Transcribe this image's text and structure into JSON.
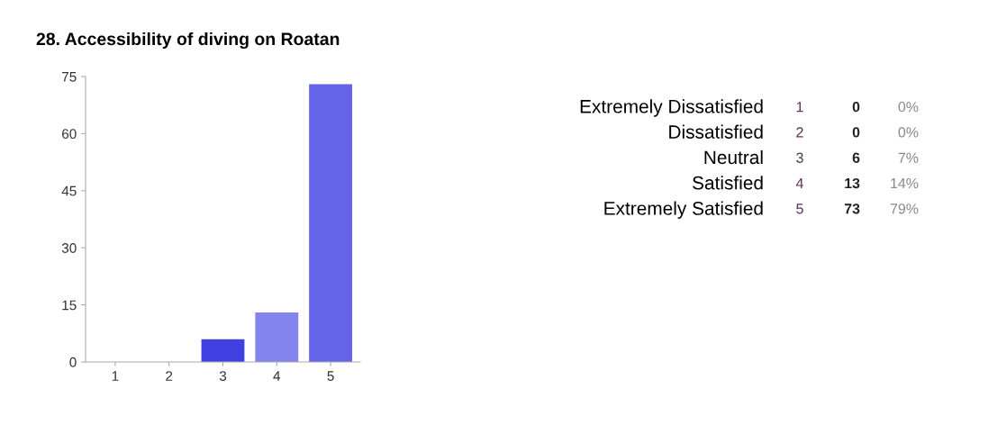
{
  "chart_data": {
    "type": "bar",
    "title": "28. Accessibility of diving on Roatan",
    "categories": [
      "1",
      "2",
      "3",
      "4",
      "5"
    ],
    "values": [
      0,
      0,
      6,
      13,
      73
    ],
    "colors": [
      "#4040e0",
      "#4040e0",
      "#4040e0",
      "#8484ee",
      "#6464e8"
    ],
    "ylim": [
      0,
      75
    ],
    "yticks": [
      0,
      15,
      30,
      45,
      60,
      75
    ],
    "grid": false,
    "legend": false,
    "annotations": [
      "Extremely Dissatisfied",
      "Dissatisfied",
      "Neutral",
      "Satisfied",
      "Extremely Satisfied",
      "0",
      "0",
      "6",
      "13",
      "73",
      "0%",
      "0%",
      "7%",
      "14%",
      "79%"
    ]
  }
}
